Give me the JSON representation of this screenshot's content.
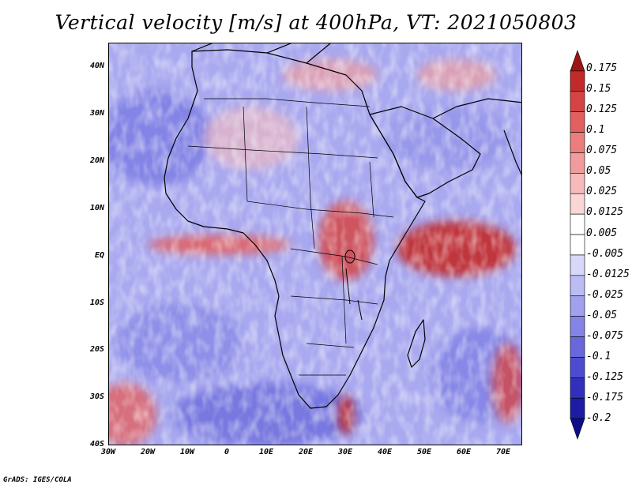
{
  "title": "Vertical velocity [m/s] at 400hPa, VT: 2021050803",
  "credit": "GrADS: IGES/COLA",
  "map": {
    "lon_range": [
      -30,
      75
    ],
    "lat_range": [
      -40,
      45
    ],
    "y_ticks": [
      "40N",
      "30N",
      "20N",
      "10N",
      "EQ",
      "10S",
      "20S",
      "30S",
      "40S"
    ],
    "y_tick_values": [
      40,
      30,
      20,
      10,
      0,
      -10,
      -20,
      -30,
      -40
    ],
    "x_ticks": [
      "30W",
      "20W",
      "10W",
      "0",
      "10E",
      "20E",
      "30E",
      "40E",
      "50E",
      "60E",
      "70E"
    ],
    "x_tick_values": [
      -30,
      -20,
      -10,
      0,
      10,
      20,
      30,
      40,
      50,
      60,
      70
    ]
  },
  "colorbar": {
    "labels": [
      "0.175",
      "0.15",
      "0.125",
      "0.1",
      "0.075",
      "0.05",
      "0.025",
      "0.0125",
      "0.005",
      "-0.005",
      "-0.0125",
      "-0.025",
      "-0.05",
      "-0.075",
      "-0.1",
      "-0.125",
      "-0.175",
      "-0.2"
    ],
    "colors": [
      "#9c1414",
      "#c22a2a",
      "#d54444",
      "#e26060",
      "#ea7e7e",
      "#f09c9c",
      "#f6baba",
      "#fad6d6",
      "#ffffff",
      "#ffffff",
      "#d8d8fa",
      "#bcbcf4",
      "#a0a0ee",
      "#8484e6",
      "#6868dc",
      "#4c4cd0",
      "#3030bc",
      "#1c1ca4",
      "#0e0e8a"
    ]
  }
}
